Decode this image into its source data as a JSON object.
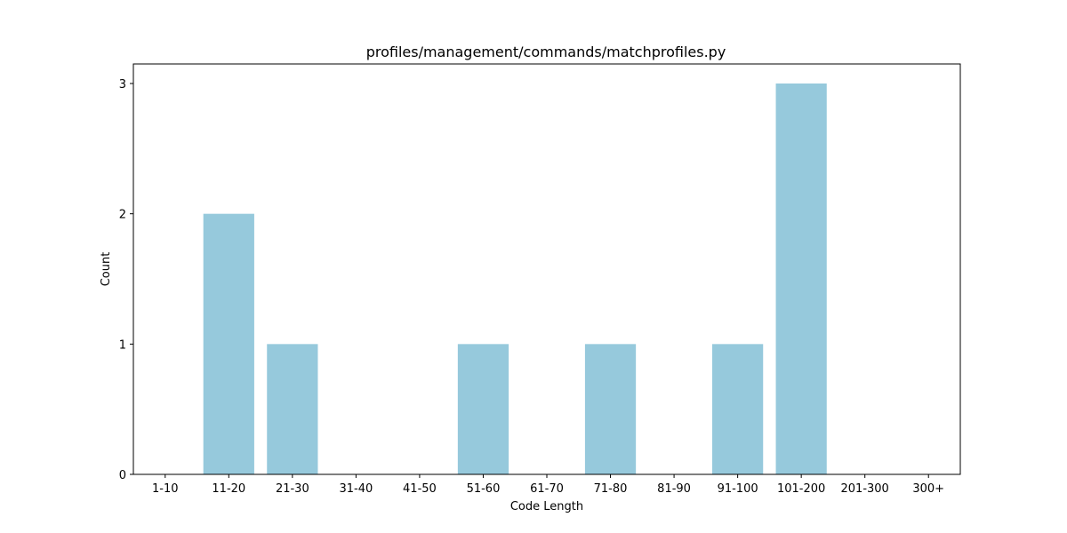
{
  "chart_data": {
    "type": "bar",
    "title": "profiles/management/commands/matchprofiles.py",
    "xlabel": "Code Length",
    "ylabel": "Count",
    "categories": [
      "1-10",
      "11-20",
      "21-30",
      "31-40",
      "41-50",
      "51-60",
      "61-70",
      "71-80",
      "81-90",
      "91-100",
      "101-200",
      "201-300",
      "300+"
    ],
    "values": [
      0,
      2,
      1,
      0,
      0,
      1,
      0,
      1,
      0,
      1,
      3,
      0,
      0
    ],
    "ylim": [
      0,
      3.15
    ],
    "yticks": [
      0,
      1,
      2,
      3
    ],
    "bar_color": "#96c9dc",
    "grid": false,
    "legend": "none"
  }
}
